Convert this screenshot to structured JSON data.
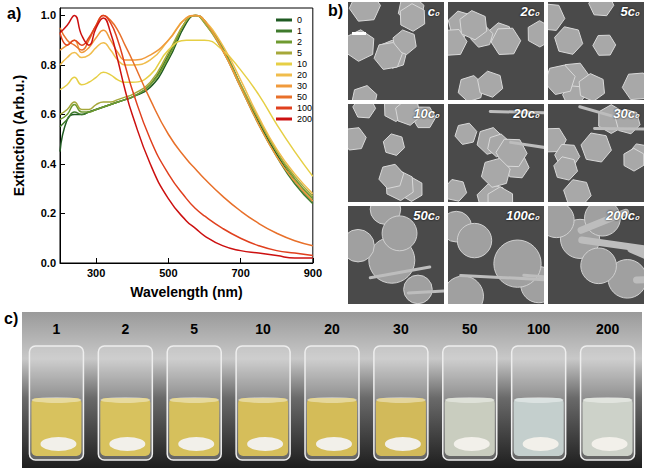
{
  "chart_data": {
    "type": "line",
    "title": "a)",
    "x_label": "Wavelength (nm)",
    "y_label": "Extinction (Arb.u.)",
    "x": [
      200,
      220,
      240,
      260,
      280,
      300,
      320,
      340,
      360,
      380,
      400,
      450,
      500,
      550,
      575,
      600,
      650,
      700,
      750,
      800,
      850,
      900
    ],
    "series": [
      {
        "name": "0",
        "color": "#1f5a22",
        "values": [
          0.45,
          0.58,
          0.6,
          0.6,
          0.61,
          0.62,
          0.63,
          0.64,
          0.65,
          0.66,
          0.67,
          0.71,
          0.82,
          0.97,
          1.0,
          0.98,
          0.87,
          0.72,
          0.57,
          0.44,
          0.33,
          0.25
        ]
      },
      {
        "name": "1",
        "color": "#3f7a2c",
        "values": [
          0.55,
          0.58,
          0.61,
          0.6,
          0.61,
          0.62,
          0.63,
          0.64,
          0.65,
          0.66,
          0.67,
          0.72,
          0.84,
          0.98,
          1.0,
          0.97,
          0.86,
          0.71,
          0.56,
          0.43,
          0.32,
          0.24
        ]
      },
      {
        "name": "2",
        "color": "#6f9a30",
        "values": [
          0.58,
          0.6,
          0.64,
          0.61,
          0.61,
          0.62,
          0.63,
          0.64,
          0.65,
          0.66,
          0.67,
          0.72,
          0.83,
          0.98,
          1.0,
          0.98,
          0.87,
          0.72,
          0.58,
          0.45,
          0.34,
          0.26
        ]
      },
      {
        "name": "5",
        "color": "#a6a83a",
        "values": [
          0.6,
          0.62,
          0.65,
          0.62,
          0.62,
          0.64,
          0.65,
          0.65,
          0.66,
          0.67,
          0.68,
          0.73,
          0.85,
          0.98,
          1.0,
          0.97,
          0.86,
          0.72,
          0.58,
          0.45,
          0.35,
          0.27
        ]
      },
      {
        "name": "10",
        "color": "#e6cf45",
        "values": [
          0.7,
          0.72,
          0.75,
          0.72,
          0.73,
          0.75,
          0.77,
          0.76,
          0.74,
          0.73,
          0.73,
          0.76,
          0.86,
          0.9,
          0.9,
          0.9,
          0.86,
          0.78,
          0.68,
          0.56,
          0.45,
          0.35
        ]
      },
      {
        "name": "20",
        "color": "#f0bd4c",
        "values": [
          0.8,
          0.83,
          0.85,
          0.83,
          0.84,
          0.87,
          0.89,
          0.86,
          0.82,
          0.8,
          0.8,
          0.82,
          0.9,
          0.99,
          1.0,
          0.98,
          0.88,
          0.74,
          0.59,
          0.46,
          0.36,
          0.28
        ]
      },
      {
        "name": "30",
        "color": "#f09a3c",
        "values": [
          0.86,
          0.88,
          0.9,
          0.85,
          0.87,
          0.91,
          0.94,
          0.9,
          0.85,
          0.82,
          0.82,
          0.84,
          0.9,
          0.99,
          1.0,
          0.98,
          0.86,
          0.71,
          0.56,
          0.43,
          0.33,
          0.25
        ]
      },
      {
        "name": "50",
        "color": "#e8702a",
        "values": [
          0.95,
          0.9,
          0.88,
          0.86,
          0.9,
          0.96,
          1.0,
          0.98,
          0.94,
          0.88,
          0.82,
          0.66,
          0.52,
          0.42,
          0.38,
          0.34,
          0.27,
          0.21,
          0.16,
          0.12,
          0.09,
          0.07
        ]
      },
      {
        "name": "100",
        "color": "#e0401e",
        "values": [
          0.93,
          0.88,
          0.9,
          0.88,
          0.91,
          0.96,
          1.0,
          0.97,
          0.9,
          0.8,
          0.7,
          0.5,
          0.36,
          0.26,
          0.22,
          0.19,
          0.14,
          0.1,
          0.07,
          0.05,
          0.04,
          0.03
        ]
      },
      {
        "name": "200",
        "color": "#cc1010",
        "values": [
          0.93,
          0.96,
          1.0,
          0.92,
          0.88,
          0.95,
          0.99,
          0.93,
          0.82,
          0.7,
          0.6,
          0.4,
          0.26,
          0.17,
          0.14,
          0.11,
          0.07,
          0.05,
          0.04,
          0.03,
          0.02,
          0.02
        ]
      }
    ],
    "xlim": [
      200,
      900
    ],
    "xticks": [
      300,
      500,
      700,
      900
    ],
    "ylim": [
      0,
      1.03
    ],
    "yticks": [
      {
        "value": 0,
        "label": "0.0"
      },
      {
        "value": 0.2,
        "label": "0.2"
      },
      {
        "value": 0.4,
        "label": "0.4"
      },
      {
        "value": 0.6,
        "label": "0.6"
      },
      {
        "value": 0.8,
        "label": "0.8"
      },
      {
        "value": 1,
        "label": "1.0"
      }
    ],
    "grid": false,
    "legend": "top-right"
  },
  "panel_b": {
    "label": "b)",
    "images": [
      "c₀",
      "2c₀",
      "5c₀",
      "10c₀",
      "20c₀",
      "30c₀",
      "50c₀",
      "100c₀",
      "200c₀"
    ]
  },
  "panel_c": {
    "label": "c)",
    "vials": [
      {
        "label": "1",
        "color": "#d8c25e"
      },
      {
        "label": "2",
        "color": "#d8c25e"
      },
      {
        "label": "5",
        "color": "#d6c05c"
      },
      {
        "label": "10",
        "color": "#d6be5a"
      },
      {
        "label": "20",
        "color": "#d4bc58"
      },
      {
        "label": "30",
        "color": "#d2ba5a"
      },
      {
        "label": "50",
        "color": "#c9cdbf"
      },
      {
        "label": "100",
        "color": "#c4cfcd"
      },
      {
        "label": "200",
        "color": "#cdd2c9"
      }
    ]
  }
}
